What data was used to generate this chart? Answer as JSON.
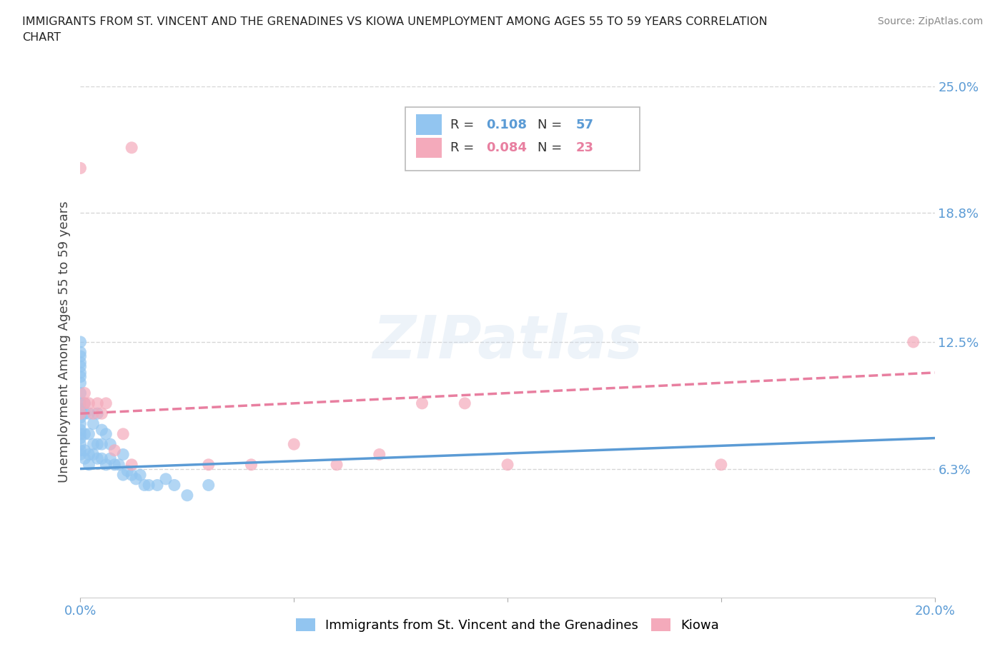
{
  "title": "IMMIGRANTS FROM ST. VINCENT AND THE GRENADINES VS KIOWA UNEMPLOYMENT AMONG AGES 55 TO 59 YEARS CORRELATION\nCHART",
  "source_text": "Source: ZipAtlas.com",
  "ylabel": "Unemployment Among Ages 55 to 59 years",
  "xlim": [
    0.0,
    0.2
  ],
  "ylim": [
    0.0,
    0.25
  ],
  "y_ticks_right": [
    0.063,
    0.125,
    0.188,
    0.25
  ],
  "y_tick_labels_right": [
    "6.3%",
    "12.5%",
    "18.8%",
    "25.0%"
  ],
  "blue_color": "#92C5F0",
  "pink_color": "#F4AABB",
  "trend_blue_color": "#5B9BD5",
  "trend_pink_color": "#E87FA0",
  "grid_color": "#CCCCCC",
  "blue_scatter_x": [
    0.0,
    0.0,
    0.0,
    0.0,
    0.0,
    0.0,
    0.0,
    0.0,
    0.0,
    0.0,
    0.0,
    0.0,
    0.0,
    0.0,
    0.0,
    0.0,
    0.0,
    0.0,
    0.0,
    0.0,
    0.001,
    0.001,
    0.001,
    0.001,
    0.001,
    0.002,
    0.002,
    0.002,
    0.002,
    0.003,
    0.003,
    0.003,
    0.004,
    0.004,
    0.004,
    0.005,
    0.005,
    0.005,
    0.006,
    0.006,
    0.007,
    0.007,
    0.008,
    0.009,
    0.01,
    0.01,
    0.011,
    0.012,
    0.013,
    0.014,
    0.015,
    0.016,
    0.018,
    0.02,
    0.022,
    0.025,
    0.03
  ],
  "blue_scatter_y": [
    0.07,
    0.072,
    0.075,
    0.078,
    0.08,
    0.082,
    0.085,
    0.088,
    0.09,
    0.092,
    0.095,
    0.1,
    0.105,
    0.108,
    0.11,
    0.113,
    0.115,
    0.118,
    0.12,
    0.125,
    0.068,
    0.072,
    0.08,
    0.09,
    0.095,
    0.065,
    0.07,
    0.08,
    0.09,
    0.07,
    0.075,
    0.085,
    0.068,
    0.075,
    0.09,
    0.068,
    0.075,
    0.082,
    0.065,
    0.08,
    0.068,
    0.075,
    0.065,
    0.065,
    0.06,
    0.07,
    0.062,
    0.06,
    0.058,
    0.06,
    0.055,
    0.055,
    0.055,
    0.058,
    0.055,
    0.05,
    0.055
  ],
  "pink_scatter_x": [
    0.0,
    0.0,
    0.001,
    0.001,
    0.002,
    0.003,
    0.004,
    0.005,
    0.006,
    0.008,
    0.01,
    0.012,
    0.03,
    0.04,
    0.05,
    0.06,
    0.07,
    0.08,
    0.09,
    0.1,
    0.15,
    0.195,
    0.012
  ],
  "pink_scatter_y": [
    0.21,
    0.09,
    0.095,
    0.1,
    0.095,
    0.09,
    0.095,
    0.09,
    0.095,
    0.072,
    0.08,
    0.22,
    0.065,
    0.065,
    0.075,
    0.065,
    0.07,
    0.095,
    0.095,
    0.065,
    0.065,
    0.125,
    0.065
  ],
  "blue_trend_x0": 0.0,
  "blue_trend_y0": 0.063,
  "blue_trend_x1": 0.2,
  "blue_trend_y1": 0.078,
  "pink_trend_x0": 0.0,
  "pink_trend_y0": 0.09,
  "pink_trend_x1": 0.2,
  "pink_trend_y1": 0.11
}
